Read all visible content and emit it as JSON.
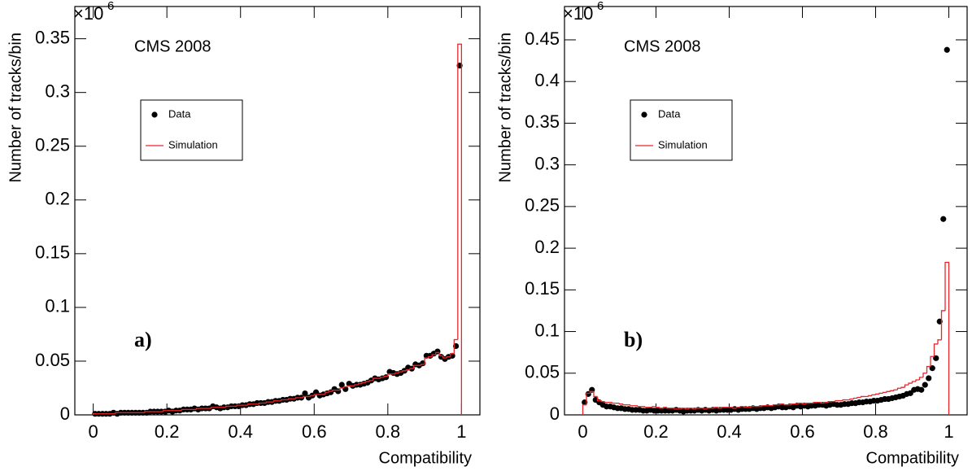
{
  "chart_data": [
    {
      "type": "histogram",
      "title": "CMS 2008",
      "panel_label": "a)",
      "x_label": "Compatibility",
      "y_label": "Number of tracks/bin",
      "y_multiplier": {
        "base": "×10",
        "exponent": "6"
      },
      "legend_position": "upper left",
      "xlim": [
        -0.05,
        1.05
      ],
      "xticks": [
        0,
        0.2,
        0.4,
        0.6,
        0.8,
        1
      ],
      "ylim": [
        0,
        0.38
      ],
      "yticks": [
        0,
        0.05,
        0.1,
        0.15,
        0.2,
        0.25,
        0.3,
        0.35
      ],
      "bins": [
        0,
        0.01,
        0.02,
        0.03,
        0.04,
        0.05,
        0.06,
        0.07,
        0.08,
        0.09,
        0.1,
        0.11,
        0.12,
        0.13,
        0.14,
        0.15,
        0.16,
        0.17,
        0.18,
        0.19,
        0.2,
        0.21,
        0.22,
        0.23,
        0.24,
        0.25,
        0.26,
        0.27,
        0.28,
        0.29,
        0.3,
        0.31,
        0.32,
        0.33,
        0.34,
        0.35,
        0.36,
        0.37,
        0.38,
        0.39,
        0.4,
        0.41,
        0.42,
        0.43,
        0.44,
        0.45,
        0.46,
        0.47,
        0.48,
        0.49,
        0.5,
        0.51,
        0.52,
        0.53,
        0.54,
        0.55,
        0.56,
        0.57,
        0.58,
        0.59,
        0.6,
        0.61,
        0.62,
        0.63,
        0.64,
        0.65,
        0.66,
        0.67,
        0.68,
        0.69,
        0.7,
        0.71,
        0.72,
        0.73,
        0.74,
        0.75,
        0.76,
        0.77,
        0.78,
        0.79,
        0.8,
        0.81,
        0.82,
        0.83,
        0.84,
        0.85,
        0.86,
        0.87,
        0.88,
        0.89,
        0.9,
        0.91,
        0.92,
        0.93,
        0.94,
        0.95,
        0.96,
        0.97,
        0.98,
        0.99,
        1
      ],
      "series": [
        {
          "name": "Data",
          "color": "#000000",
          "draw": "markers",
          "values": [
            0.001,
            0.001,
            0.001,
            0.001,
            0.001,
            0.002,
            0.001,
            0.002,
            0.002,
            0.002,
            0.002,
            0.002,
            0.002,
            0.002,
            0.002,
            0.003,
            0.003,
            0.003,
            0.003,
            0.003,
            0.004,
            0.003,
            0.004,
            0.004,
            0.005,
            0.005,
            0.005,
            0.006,
            0.005,
            0.006,
            0.006,
            0.006,
            0.008,
            0.007,
            0.006,
            0.007,
            0.007,
            0.008,
            0.008,
            0.008,
            0.009,
            0.009,
            0.01,
            0.01,
            0.011,
            0.011,
            0.011,
            0.012,
            0.012,
            0.013,
            0.013,
            0.014,
            0.014,
            0.015,
            0.015,
            0.016,
            0.016,
            0.02,
            0.016,
            0.018,
            0.021,
            0.018,
            0.019,
            0.02,
            0.021,
            0.024,
            0.022,
            0.028,
            0.024,
            0.029,
            0.027,
            0.028,
            0.028,
            0.029,
            0.03,
            0.032,
            0.034,
            0.033,
            0.034,
            0.035,
            0.04,
            0.039,
            0.038,
            0.039,
            0.041,
            0.044,
            0.043,
            0.047,
            0.046,
            0.048,
            0.055,
            0.055,
            0.057,
            0.059,
            0.054,
            0.052,
            0.054,
            0.055,
            0.064,
            0.325
          ]
        },
        {
          "name": "Simulation",
          "color": "#e8262a",
          "draw": "steps",
          "values": [
            0.001,
            0.001,
            0.001,
            0.001,
            0.001,
            0.001,
            0.002,
            0.002,
            0.002,
            0.002,
            0.002,
            0.002,
            0.002,
            0.002,
            0.003,
            0.003,
            0.003,
            0.003,
            0.003,
            0.004,
            0.004,
            0.004,
            0.004,
            0.004,
            0.005,
            0.005,
            0.005,
            0.005,
            0.006,
            0.006,
            0.006,
            0.006,
            0.007,
            0.007,
            0.007,
            0.007,
            0.008,
            0.008,
            0.008,
            0.009,
            0.009,
            0.009,
            0.01,
            0.01,
            0.01,
            0.011,
            0.011,
            0.012,
            0.012,
            0.013,
            0.013,
            0.014,
            0.014,
            0.015,
            0.015,
            0.016,
            0.016,
            0.017,
            0.017,
            0.018,
            0.019,
            0.019,
            0.019,
            0.021,
            0.022,
            0.023,
            0.023,
            0.025,
            0.026,
            0.027,
            0.027,
            0.028,
            0.029,
            0.03,
            0.031,
            0.032,
            0.034,
            0.034,
            0.035,
            0.036,
            0.038,
            0.038,
            0.039,
            0.04,
            0.041,
            0.042,
            0.043,
            0.046,
            0.046,
            0.047,
            0.053,
            0.054,
            0.056,
            0.058,
            0.055,
            0.053,
            0.054,
            0.057,
            0.07,
            0.345
          ]
        }
      ]
    },
    {
      "type": "histogram",
      "title": "CMS 2008",
      "panel_label": "b)",
      "x_label": "Compatibility",
      "y_label": "Number of tracks/bin",
      "y_multiplier": {
        "base": "×10",
        "exponent": "6"
      },
      "legend_position": "upper left",
      "xlim": [
        -0.05,
        1.05
      ],
      "xticks": [
        0,
        0.2,
        0.4,
        0.6,
        0.8,
        1
      ],
      "ylim": [
        0,
        0.49
      ],
      "yticks": [
        0,
        0.05,
        0.1,
        0.15,
        0.2,
        0.25,
        0.3,
        0.35,
        0.4,
        0.45
      ],
      "bins": [
        0,
        0.01,
        0.02,
        0.03,
        0.04,
        0.05,
        0.06,
        0.07,
        0.08,
        0.09,
        0.1,
        0.11,
        0.12,
        0.13,
        0.14,
        0.15,
        0.16,
        0.17,
        0.18,
        0.19,
        0.2,
        0.21,
        0.22,
        0.23,
        0.24,
        0.25,
        0.26,
        0.27,
        0.28,
        0.29,
        0.3,
        0.31,
        0.32,
        0.33,
        0.34,
        0.35,
        0.36,
        0.37,
        0.38,
        0.39,
        0.4,
        0.41,
        0.42,
        0.43,
        0.44,
        0.45,
        0.46,
        0.47,
        0.48,
        0.49,
        0.5,
        0.51,
        0.52,
        0.53,
        0.54,
        0.55,
        0.56,
        0.57,
        0.58,
        0.59,
        0.6,
        0.61,
        0.62,
        0.63,
        0.64,
        0.65,
        0.66,
        0.67,
        0.68,
        0.69,
        0.7,
        0.71,
        0.72,
        0.73,
        0.74,
        0.75,
        0.76,
        0.77,
        0.78,
        0.79,
        0.8,
        0.81,
        0.82,
        0.83,
        0.84,
        0.85,
        0.86,
        0.87,
        0.88,
        0.89,
        0.9,
        0.91,
        0.92,
        0.93,
        0.94,
        0.95,
        0.96,
        0.97,
        0.98,
        0.99,
        1
      ],
      "series": [
        {
          "name": "Data",
          "color": "#000000",
          "draw": "markers",
          "values": [
            0.015,
            0.025,
            0.03,
            0.018,
            0.015,
            0.012,
            0.01,
            0.01,
            0.009,
            0.008,
            0.008,
            0.007,
            0.007,
            0.006,
            0.006,
            0.006,
            0.005,
            0.005,
            0.006,
            0.005,
            0.005,
            0.005,
            0.005,
            0.005,
            0.005,
            0.006,
            0.005,
            0.004,
            0.005,
            0.005,
            0.005,
            0.006,
            0.005,
            0.006,
            0.005,
            0.006,
            0.005,
            0.006,
            0.006,
            0.006,
            0.006,
            0.007,
            0.006,
            0.007,
            0.007,
            0.007,
            0.008,
            0.007,
            0.008,
            0.008,
            0.009,
            0.008,
            0.009,
            0.01,
            0.009,
            0.009,
            0.01,
            0.009,
            0.011,
            0.01,
            0.011,
            0.01,
            0.011,
            0.011,
            0.012,
            0.012,
            0.011,
            0.012,
            0.013,
            0.012,
            0.012,
            0.013,
            0.013,
            0.014,
            0.014,
            0.015,
            0.015,
            0.016,
            0.016,
            0.017,
            0.017,
            0.018,
            0.019,
            0.019,
            0.02,
            0.021,
            0.022,
            0.023,
            0.025,
            0.026,
            0.03,
            0.031,
            0.03,
            0.036,
            0.044,
            0.056,
            0.068,
            0.112,
            0.235,
            0.438
          ]
        },
        {
          "name": "Simulation",
          "color": "#e8262a",
          "draw": "steps",
          "values": [
            0.012,
            0.026,
            0.028,
            0.022,
            0.017,
            0.016,
            0.015,
            0.015,
            0.014,
            0.014,
            0.013,
            0.012,
            0.012,
            0.011,
            0.011,
            0.01,
            0.01,
            0.009,
            0.009,
            0.01,
            0.009,
            0.008,
            0.009,
            0.008,
            0.008,
            0.007,
            0.007,
            0.008,
            0.007,
            0.008,
            0.007,
            0.008,
            0.008,
            0.007,
            0.008,
            0.008,
            0.009,
            0.008,
            0.009,
            0.009,
            0.009,
            0.008,
            0.009,
            0.01,
            0.009,
            0.009,
            0.01,
            0.01,
            0.01,
            0.011,
            0.011,
            0.011,
            0.012,
            0.012,
            0.013,
            0.012,
            0.012,
            0.013,
            0.013,
            0.014,
            0.013,
            0.014,
            0.014,
            0.015,
            0.015,
            0.014,
            0.015,
            0.016,
            0.016,
            0.017,
            0.017,
            0.018,
            0.018,
            0.019,
            0.02,
            0.021,
            0.022,
            0.022,
            0.023,
            0.024,
            0.025,
            0.026,
            0.027,
            0.028,
            0.029,
            0.03,
            0.032,
            0.033,
            0.036,
            0.038,
            0.04,
            0.042,
            0.045,
            0.05,
            0.058,
            0.07,
            0.085,
            0.09,
            0.125,
            0.183
          ]
        }
      ]
    }
  ]
}
